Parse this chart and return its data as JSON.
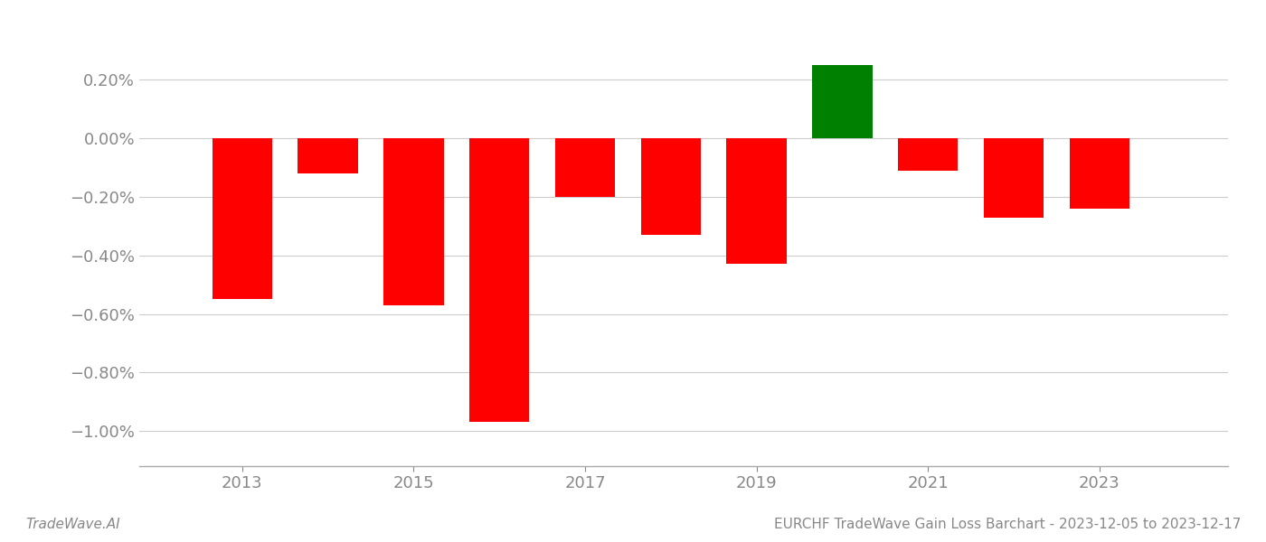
{
  "years": [
    2013,
    2014,
    2015,
    2016,
    2017,
    2018,
    2019,
    2020,
    2021,
    2022,
    2023
  ],
  "values": [
    -0.0055,
    -0.0012,
    -0.0057,
    -0.0097,
    -0.002,
    -0.0033,
    -0.0043,
    0.0025,
    -0.0011,
    -0.0027,
    -0.0024
  ],
  "colors": [
    "#ff0000",
    "#ff0000",
    "#ff0000",
    "#ff0000",
    "#ff0000",
    "#ff0000",
    "#ff0000",
    "#008000",
    "#ff0000",
    "#ff0000",
    "#ff0000"
  ],
  "ylim_min": -0.0112,
  "ylim_max": 0.0038,
  "yticks": [
    0.002,
    0.0,
    -0.002,
    -0.004,
    -0.006,
    -0.008,
    -0.01
  ],
  "bar_width": 0.7,
  "title": "EURCHF TradeWave Gain Loss Barchart - 2023-12-05 to 2023-12-17",
  "footer_left": "TradeWave.AI",
  "background_color": "#ffffff",
  "grid_color": "#cccccc",
  "text_color": "#888888",
  "title_fontsize": 11,
  "tick_fontsize": 13,
  "footer_fontsize": 11,
  "xlim_min": 2011.8,
  "xlim_max": 2024.5,
  "xtick_positions": [
    2013,
    2015,
    2017,
    2019,
    2021,
    2023
  ],
  "xtick_labels": [
    "2013",
    "2015",
    "2017",
    "2019",
    "2021",
    "2023"
  ]
}
